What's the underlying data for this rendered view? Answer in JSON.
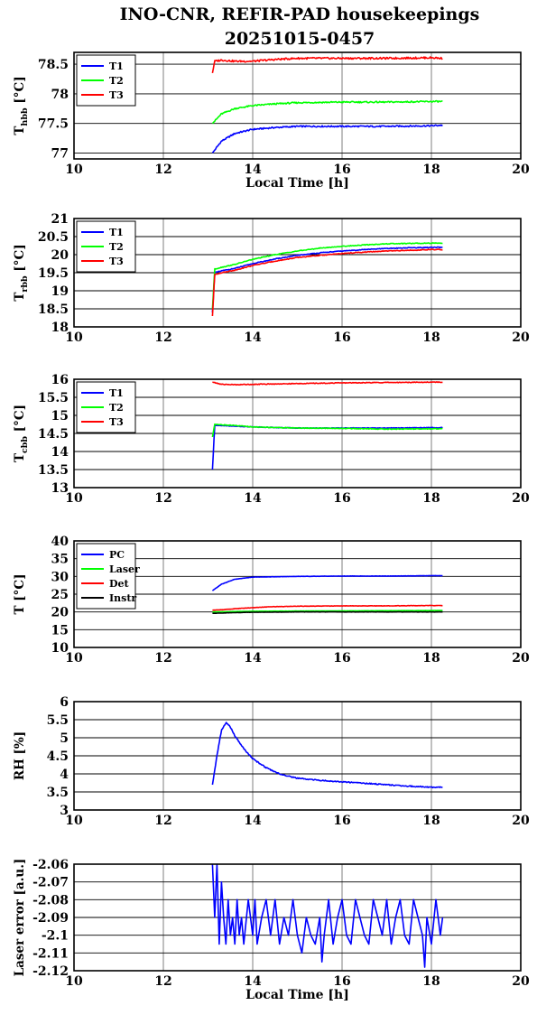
{
  "title_line1": "INO-CNR, REFIR-PAD housekeepings",
  "title_line2": "20251015-0457",
  "chart_data": [
    {
      "type": "line",
      "ylabel_main": "T",
      "ylabel_sub": "hbb",
      "ylabel_unit": " [°C]",
      "xlabel": "Local Time [h]",
      "xlim": [
        10,
        20
      ],
      "xticks": [
        10,
        12,
        14,
        16,
        18,
        20
      ],
      "ylim": [
        76.9,
        78.7
      ],
      "yticks": [
        77,
        77.5,
        78,
        78.5
      ],
      "ytick_labels": [
        "77",
        "77.5",
        "78",
        "78.5"
      ],
      "grid": true,
      "legend": "top-left",
      "series": [
        {
          "name": "T1",
          "color": "#0000ff",
          "noise": 0.012,
          "x": [
            13.1,
            13.3,
            13.6,
            14.0,
            14.5,
            15.0,
            16.0,
            17.0,
            18.0,
            18.25
          ],
          "values": [
            77.0,
            77.2,
            77.33,
            77.4,
            77.43,
            77.45,
            77.45,
            77.45,
            77.46,
            77.47
          ]
        },
        {
          "name": "T2",
          "color": "#00ff00",
          "noise": 0.012,
          "x": [
            13.1,
            13.3,
            13.6,
            14.0,
            14.5,
            15.0,
            16.0,
            17.0,
            18.0,
            18.25
          ],
          "values": [
            77.5,
            77.66,
            77.75,
            77.8,
            77.83,
            77.85,
            77.86,
            77.86,
            77.87,
            77.87
          ]
        },
        {
          "name": "T3",
          "color": "#ff0000",
          "noise": 0.015,
          "x": [
            13.1,
            13.15,
            13.3,
            13.6,
            14.0,
            14.5,
            15.0,
            16.0,
            17.0,
            18.0,
            18.25
          ],
          "values": [
            78.35,
            78.55,
            78.57,
            78.55,
            78.55,
            78.58,
            78.6,
            78.6,
            78.6,
            78.61,
            78.6
          ]
        }
      ]
    },
    {
      "type": "line",
      "ylabel_main": "T",
      "ylabel_sub": "rbb",
      "ylabel_unit": " [°C]",
      "xlabel": "",
      "xlim": [
        10,
        20
      ],
      "xticks": [
        10,
        12,
        14,
        16,
        18,
        20
      ],
      "ylim": [
        18,
        21
      ],
      "yticks": [
        18,
        18.5,
        19,
        19.5,
        20,
        20.5,
        21
      ],
      "ytick_labels": [
        "18",
        "18.5",
        "19",
        "19.5",
        "20",
        "20.5",
        "21"
      ],
      "grid": true,
      "legend": "top-left",
      "series": [
        {
          "name": "T1",
          "color": "#0000ff",
          "noise": 0.01,
          "x": [
            13.1,
            13.15,
            13.3,
            13.6,
            14.0,
            14.5,
            15.0,
            15.5,
            16.0,
            16.5,
            17.0,
            17.5,
            18.0,
            18.25
          ],
          "values": [
            18.4,
            19.5,
            19.55,
            19.62,
            19.75,
            19.88,
            19.98,
            20.05,
            20.1,
            20.14,
            20.17,
            20.19,
            20.2,
            20.2
          ]
        },
        {
          "name": "T2",
          "color": "#00ff00",
          "noise": 0.01,
          "x": [
            13.1,
            13.15,
            13.3,
            13.6,
            14.0,
            14.5,
            15.0,
            15.5,
            16.0,
            16.5,
            17.0,
            17.5,
            18.0,
            18.25
          ],
          "values": [
            18.5,
            19.6,
            19.65,
            19.73,
            19.87,
            20.0,
            20.1,
            20.18,
            20.23,
            20.27,
            20.3,
            20.31,
            20.32,
            20.32
          ]
        },
        {
          "name": "T3",
          "color": "#ff0000",
          "noise": 0.01,
          "x": [
            13.1,
            13.15,
            13.3,
            13.6,
            14.0,
            14.5,
            15.0,
            15.5,
            16.0,
            16.5,
            17.0,
            17.5,
            18.0,
            18.25
          ],
          "values": [
            18.3,
            19.45,
            19.5,
            19.57,
            19.7,
            19.82,
            19.92,
            19.98,
            20.03,
            20.07,
            20.1,
            20.12,
            20.14,
            20.14
          ]
        }
      ]
    },
    {
      "type": "line",
      "ylabel_main": "T",
      "ylabel_sub": "cbb",
      "ylabel_unit": " [°C]",
      "xlabel": "",
      "xlim": [
        10,
        20
      ],
      "xticks": [
        10,
        12,
        14,
        16,
        18,
        20
      ],
      "ylim": [
        13,
        16
      ],
      "yticks": [
        13,
        13.5,
        14,
        14.5,
        15,
        15.5,
        16
      ],
      "ytick_labels": [
        "13",
        "13.5",
        "14",
        "14.5",
        "15",
        "15.5",
        "16"
      ],
      "grid": true,
      "legend": "top-left",
      "series": [
        {
          "name": "T1",
          "color": "#0000ff",
          "noise": 0.008,
          "x": [
            13.1,
            13.15,
            13.3,
            13.6,
            14.0,
            15.0,
            16.0,
            17.0,
            18.0,
            18.25
          ],
          "values": [
            13.5,
            14.72,
            14.72,
            14.7,
            14.68,
            14.65,
            14.65,
            14.65,
            14.66,
            14.66
          ]
        },
        {
          "name": "T2",
          "color": "#00ff00",
          "noise": 0.01,
          "x": [
            13.1,
            13.15,
            13.3,
            13.6,
            14.0,
            15.0,
            16.0,
            17.0,
            18.0,
            18.25
          ],
          "values": [
            14.4,
            14.76,
            14.74,
            14.72,
            14.68,
            14.65,
            14.64,
            14.62,
            14.63,
            14.63
          ]
        },
        {
          "name": "T3",
          "color": "#ff0000",
          "noise": 0.01,
          "x": [
            13.1,
            13.3,
            13.6,
            14.0,
            15.0,
            16.0,
            17.0,
            18.0,
            18.25
          ],
          "values": [
            15.92,
            15.86,
            15.85,
            15.86,
            15.88,
            15.9,
            15.91,
            15.92,
            15.92
          ]
        }
      ]
    },
    {
      "type": "line",
      "ylabel_main": "T",
      "ylabel_sub": "",
      "ylabel_unit": " [°C]",
      "xlabel": "",
      "xlim": [
        10,
        20
      ],
      "xticks": [
        10,
        12,
        14,
        16,
        18,
        20
      ],
      "ylim": [
        10,
        40
      ],
      "yticks": [
        10,
        15,
        20,
        25,
        30,
        35,
        40
      ],
      "ytick_labels": [
        "10",
        "15",
        "20",
        "25",
        "30",
        "35",
        "40"
      ],
      "grid": true,
      "legend": "top-left",
      "series": [
        {
          "name": "PC",
          "color": "#0000ff",
          "noise": 0.04,
          "x": [
            13.1,
            13.3,
            13.6,
            14.0,
            14.5,
            15.0,
            16.0,
            17.0,
            18.0,
            18.25
          ],
          "values": [
            26.0,
            27.8,
            29.2,
            29.8,
            29.9,
            30.0,
            30.1,
            30.1,
            30.2,
            30.2
          ]
        },
        {
          "name": "Laser",
          "color": "#00ff00",
          "noise": 0.02,
          "x": [
            13.1,
            14.0,
            16.0,
            18.25
          ],
          "values": [
            20.0,
            20.2,
            20.3,
            20.4
          ]
        },
        {
          "name": "Det",
          "color": "#ff0000",
          "noise": 0.05,
          "x": [
            13.1,
            13.3,
            13.6,
            14.0,
            14.5,
            15.0,
            16.0,
            17.0,
            18.0,
            18.25
          ],
          "values": [
            20.5,
            20.6,
            20.9,
            21.2,
            21.5,
            21.6,
            21.7,
            21.7,
            21.8,
            21.8
          ]
        },
        {
          "name": "Instr",
          "color": "#000000",
          "noise": 0.03,
          "x": [
            13.1,
            13.6,
            14.0,
            15.0,
            16.0,
            18.25
          ],
          "values": [
            19.6,
            19.8,
            19.9,
            20.0,
            20.0,
            20.0
          ]
        }
      ]
    },
    {
      "type": "line",
      "ylabel_main": "RH [%]",
      "ylabel_sub": "",
      "ylabel_unit": "",
      "xlabel": "",
      "xlim": [
        10,
        20
      ],
      "xticks": [
        10,
        12,
        14,
        16,
        18,
        20
      ],
      "ylim": [
        3,
        6
      ],
      "yticks": [
        3,
        3.5,
        4,
        4.5,
        5,
        5.5,
        6
      ],
      "ytick_labels": [
        "3",
        "3.5",
        "4",
        "4.5",
        "5",
        "5.5",
        "6"
      ],
      "grid": true,
      "legend": "none",
      "series": [
        {
          "name": "",
          "color": "#0000ff",
          "noise": 0.015,
          "x": [
            13.1,
            13.2,
            13.3,
            13.4,
            13.5,
            13.6,
            13.8,
            14.0,
            14.3,
            14.6,
            15.0,
            15.5,
            16.0,
            16.5,
            17.0,
            17.5,
            18.0,
            18.25
          ],
          "values": [
            3.7,
            4.5,
            5.2,
            5.42,
            5.3,
            5.05,
            4.7,
            4.42,
            4.17,
            4.0,
            3.88,
            3.82,
            3.78,
            3.74,
            3.7,
            3.66,
            3.63,
            3.63
          ]
        }
      ]
    },
    {
      "type": "line",
      "ylabel_main": "Laser error [a.u.]",
      "ylabel_sub": "",
      "ylabel_unit": "",
      "xlabel": "Local Time [h]",
      "xlim": [
        10,
        20
      ],
      "xticks": [
        10,
        12,
        14,
        16,
        18,
        20
      ],
      "ylim": [
        -2.12,
        -2.06
      ],
      "yticks": [
        -2.12,
        -2.11,
        -2.1,
        -2.09,
        -2.08,
        -2.07,
        -2.06
      ],
      "ytick_labels": [
        "-2.12",
        "-2.11",
        "-2.1",
        "-2.09",
        "-2.08",
        "-2.07",
        "-2.06"
      ],
      "grid": true,
      "legend": "none",
      "series": [
        {
          "name": "",
          "color": "#0000ff",
          "noise": 0,
          "x": [
            13.1,
            13.15,
            13.2,
            13.25,
            13.3,
            13.35,
            13.4,
            13.45,
            13.5,
            13.55,
            13.6,
            13.65,
            13.7,
            13.75,
            13.8,
            13.9,
            14.0,
            14.05,
            14.1,
            14.2,
            14.3,
            14.4,
            14.5,
            14.6,
            14.7,
            14.8,
            14.9,
            15.0,
            15.1,
            15.2,
            15.3,
            15.4,
            15.5,
            15.55,
            15.6,
            15.7,
            15.8,
            15.9,
            16.0,
            16.1,
            16.2,
            16.3,
            16.4,
            16.5,
            16.6,
            16.7,
            16.8,
            16.9,
            17.0,
            17.1,
            17.2,
            17.3,
            17.4,
            17.5,
            17.6,
            17.7,
            17.8,
            17.85,
            17.9,
            18.0,
            18.1,
            18.2,
            18.25
          ],
          "values": [
            -2.06,
            -2.09,
            -2.06,
            -2.105,
            -2.07,
            -2.09,
            -2.105,
            -2.08,
            -2.1,
            -2.09,
            -2.105,
            -2.08,
            -2.1,
            -2.09,
            -2.105,
            -2.08,
            -2.1,
            -2.08,
            -2.105,
            -2.09,
            -2.08,
            -2.1,
            -2.08,
            -2.105,
            -2.09,
            -2.1,
            -2.08,
            -2.1,
            -2.11,
            -2.09,
            -2.1,
            -2.105,
            -2.09,
            -2.115,
            -2.1,
            -2.08,
            -2.105,
            -2.09,
            -2.08,
            -2.1,
            -2.105,
            -2.08,
            -2.09,
            -2.1,
            -2.105,
            -2.08,
            -2.09,
            -2.1,
            -2.08,
            -2.105,
            -2.09,
            -2.08,
            -2.1,
            -2.105,
            -2.08,
            -2.09,
            -2.1,
            -2.118,
            -2.09,
            -2.105,
            -2.08,
            -2.1,
            -2.09
          ]
        }
      ]
    }
  ]
}
